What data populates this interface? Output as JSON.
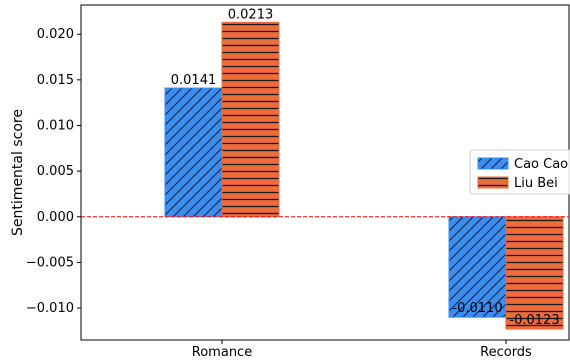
{
  "chart_data": {
    "type": "bar",
    "title": "",
    "xlabel": "",
    "ylabel": "Sentimental score",
    "categories": [
      "Romance",
      "Records"
    ],
    "series": [
      {
        "name": "Cao Cao",
        "values": [
          0.0141,
          -0.011
        ],
        "labels": [
          "0.0141",
          "-0.0110"
        ],
        "color": "#3a8ef0",
        "hatch": "diagonal"
      },
      {
        "name": "Liu Bei",
        "values": [
          0.0213,
          -0.0123
        ],
        "labels": [
          "0.0213",
          "-0.0123"
        ],
        "color": "#ee6b3b",
        "hatch": "horizontal"
      }
    ],
    "ylim": [
      -0.0135,
      0.0232
    ],
    "yticks": [
      0.02,
      0.015,
      0.01,
      0.005,
      0.0,
      -0.005,
      -0.01
    ],
    "ytick_labels": [
      "0.020",
      "0.015",
      "0.010",
      "0.005",
      "0.000",
      "−0.005",
      "−0.010"
    ],
    "reference_line": {
      "y": 0,
      "color": "#ff0000",
      "style": "dashed"
    },
    "grid": false,
    "legend_position": "center-right"
  }
}
